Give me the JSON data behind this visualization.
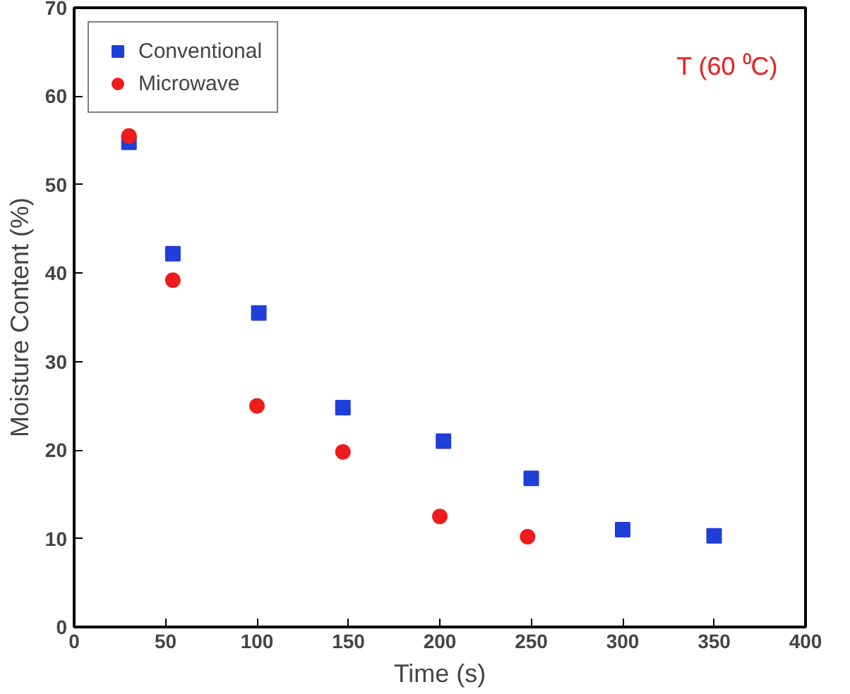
{
  "chart_data": {
    "type": "scatter",
    "xlabel": "Time (s)",
    "ylabel": "Moisture Content (%)",
    "xlim": [
      0,
      400
    ],
    "xticks": [
      0,
      50,
      100,
      150,
      200,
      250,
      300,
      350,
      400
    ],
    "ylim": [
      0,
      70
    ],
    "yticks": [
      0,
      10,
      20,
      30,
      40,
      50,
      60,
      70
    ],
    "series": [
      {
        "name": "Conventional",
        "color": "#1f3fd8",
        "marker": "square",
        "x": [
          30,
          54,
          101,
          147,
          202,
          250,
          300,
          350
        ],
        "values": [
          54.8,
          42.2,
          35.5,
          24.8,
          21,
          16.8,
          11,
          10.3
        ]
      },
      {
        "name": "Microwave",
        "color": "#ee1c1c",
        "marker": "circle",
        "x": [
          30,
          54,
          100,
          147,
          200,
          248
        ],
        "values": [
          55.5,
          39.2,
          25,
          19.8,
          12.5,
          10.2
        ]
      }
    ],
    "annotations": [
      "T (60 ⁰C)"
    ],
    "legend": "top left",
    "grid": false
  }
}
